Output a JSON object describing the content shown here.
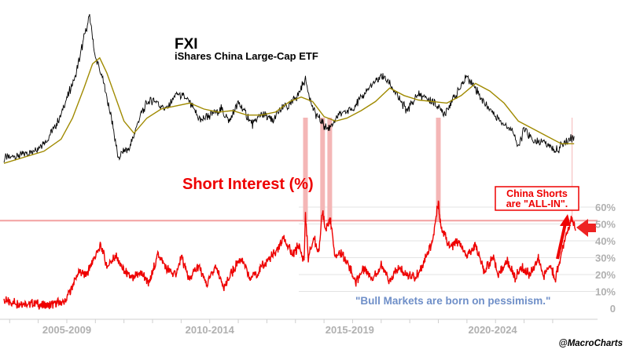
{
  "title": "FXI",
  "subtitle": "iShares China Large-Cap ETF",
  "short_interest_label": "Short Interest (%)",
  "callout": {
    "line1": "China Shorts",
    "line2": "are \"ALL-IN\"."
  },
  "quote": "\"Bull Markets are born on pessimism.\"",
  "credit": "@MacroCharts",
  "colors": {
    "price": "#000000",
    "moving_average": "#a08a00",
    "short_interest": "#ee0000",
    "highlight": "#f4b6b6",
    "threshold": "#f3a0a0",
    "quote": "#6f8fc8",
    "axis_text": "#b0b0b0"
  },
  "chart_data": [
    {
      "type": "line",
      "title": "FXI",
      "subtitle": "iShares China Large-Cap ETF",
      "series": [
        {
          "values": [
            [
              2004.8,
              0.05
            ],
            [
              2005.3,
              0.07
            ],
            [
              2005.8,
              0.1
            ],
            [
              2006.3,
              0.17
            ],
            [
              2006.7,
              0.3
            ],
            [
              2007.0,
              0.45
            ],
            [
              2007.3,
              0.6
            ],
            [
              2007.6,
              0.85
            ],
            [
              2007.8,
              1.0
            ],
            [
              2008.0,
              0.72
            ],
            [
              2008.3,
              0.55
            ],
            [
              2008.6,
              0.28
            ],
            [
              2008.8,
              0.05
            ],
            [
              2009.0,
              0.1
            ],
            [
              2009.2,
              0.12
            ],
            [
              2009.5,
              0.3
            ],
            [
              2009.8,
              0.42
            ],
            [
              2010.0,
              0.44
            ],
            [
              2010.5,
              0.38
            ],
            [
              2010.8,
              0.48
            ],
            [
              2011.2,
              0.45
            ],
            [
              2011.7,
              0.3
            ],
            [
              2011.9,
              0.33
            ],
            [
              2012.4,
              0.38
            ],
            [
              2012.7,
              0.3
            ],
            [
              2013.0,
              0.42
            ],
            [
              2013.5,
              0.28
            ],
            [
              2013.8,
              0.35
            ],
            [
              2014.2,
              0.3
            ],
            [
              2014.6,
              0.4
            ],
            [
              2014.8,
              0.4
            ],
            [
              2015.1,
              0.48
            ],
            [
              2015.35,
              0.58
            ],
            [
              2015.6,
              0.38
            ],
            [
              2016.0,
              0.27
            ],
            [
              2016.15,
              0.25
            ],
            [
              2016.6,
              0.35
            ],
            [
              2017.0,
              0.38
            ],
            [
              2017.5,
              0.5
            ],
            [
              2018.0,
              0.6
            ],
            [
              2018.3,
              0.55
            ],
            [
              2018.6,
              0.45
            ],
            [
              2018.9,
              0.37
            ],
            [
              2019.3,
              0.48
            ],
            [
              2019.8,
              0.43
            ],
            [
              2020.2,
              0.35
            ],
            [
              2020.6,
              0.47
            ],
            [
              2021.0,
              0.6
            ],
            [
              2021.2,
              0.55
            ],
            [
              2021.6,
              0.42
            ],
            [
              2021.9,
              0.36
            ],
            [
              2022.2,
              0.3
            ],
            [
              2022.6,
              0.24
            ],
            [
              2022.8,
              0.12
            ],
            [
              2023.0,
              0.25
            ],
            [
              2023.4,
              0.15
            ],
            [
              2023.7,
              0.17
            ],
            [
              2024.0,
              0.12
            ],
            [
              2024.1,
              0.1
            ],
            [
              2024.5,
              0.17
            ],
            [
              2024.75,
              0.2
            ]
          ]
        },
        {
          "values": [
            [
              2004.8,
              0.02
            ],
            [
              2005.5,
              0.06
            ],
            [
              2006.2,
              0.1
            ],
            [
              2006.8,
              0.18
            ],
            [
              2007.2,
              0.32
            ],
            [
              2007.6,
              0.52
            ],
            [
              2007.9,
              0.68
            ],
            [
              2008.15,
              0.72
            ],
            [
              2008.4,
              0.62
            ],
            [
              2008.7,
              0.46
            ],
            [
              2009.0,
              0.3
            ],
            [
              2009.35,
              0.22
            ],
            [
              2009.8,
              0.32
            ],
            [
              2010.3,
              0.38
            ],
            [
              2010.8,
              0.4
            ],
            [
              2011.3,
              0.42
            ],
            [
              2011.8,
              0.38
            ],
            [
              2012.3,
              0.36
            ],
            [
              2012.8,
              0.37
            ],
            [
              2013.3,
              0.34
            ],
            [
              2013.8,
              0.34
            ],
            [
              2014.3,
              0.36
            ],
            [
              2014.8,
              0.43
            ],
            [
              2015.2,
              0.46
            ],
            [
              2015.6,
              0.43
            ],
            [
              2016.0,
              0.33
            ],
            [
              2016.4,
              0.3
            ],
            [
              2016.8,
              0.32
            ],
            [
              2017.3,
              0.37
            ],
            [
              2017.8,
              0.43
            ],
            [
              2018.3,
              0.52
            ],
            [
              2018.8,
              0.47
            ],
            [
              2019.3,
              0.44
            ],
            [
              2019.8,
              0.43
            ],
            [
              2020.3,
              0.42
            ],
            [
              2020.8,
              0.47
            ],
            [
              2021.3,
              0.55
            ],
            [
              2021.8,
              0.5
            ],
            [
              2022.3,
              0.42
            ],
            [
              2022.8,
              0.3
            ],
            [
              2023.3,
              0.25
            ],
            [
              2023.8,
              0.2
            ],
            [
              2024.3,
              0.15
            ],
            [
              2024.75,
              0.15
            ]
          ]
        }
      ]
    },
    {
      "type": "line",
      "title": "Short Interest (%)",
      "ylim": [
        0,
        60
      ],
      "yticks": [
        "0",
        "10%",
        "20%",
        "30%",
        "40%",
        "50%",
        "60%"
      ],
      "xticks": [
        "2005-2009",
        "2010-2014",
        "2015-2019",
        "2020-2024"
      ],
      "threshold": 52,
      "highlight_dates": [
        2015.35,
        2015.95,
        2016.2,
        2020.0,
        2024.68
      ],
      "series": [
        {
          "values": [
            [
              2004.8,
              4
            ],
            [
              2005.3,
              3
            ],
            [
              2005.8,
              3
            ],
            [
              2006.3,
              1.5
            ],
            [
              2006.8,
              3
            ],
            [
              2006.95,
              4
            ],
            [
              2007.1,
              10
            ],
            [
              2007.4,
              21
            ],
            [
              2007.7,
              20
            ],
            [
              2007.95,
              30
            ],
            [
              2008.2,
              37
            ],
            [
              2008.4,
              25
            ],
            [
              2008.7,
              31
            ],
            [
              2009.0,
              22
            ],
            [
              2009.3,
              17
            ],
            [
              2009.6,
              21
            ],
            [
              2009.9,
              15
            ],
            [
              2010.2,
              33
            ],
            [
              2010.5,
              23
            ],
            [
              2010.8,
              20
            ],
            [
              2011.0,
              30
            ],
            [
              2011.3,
              17
            ],
            [
              2011.6,
              25
            ],
            [
              2011.9,
              14
            ],
            [
              2012.2,
              25
            ],
            [
              2012.5,
              12
            ],
            [
              2012.8,
              22
            ],
            [
              2013.1,
              30
            ],
            [
              2013.4,
              18
            ],
            [
              2013.7,
              22
            ],
            [
              2014.0,
              28
            ],
            [
              2014.3,
              33
            ],
            [
              2014.6,
              42
            ],
            [
              2014.9,
              31
            ],
            [
              2015.1,
              37
            ],
            [
              2015.3,
              28
            ],
            [
              2015.35,
              56
            ],
            [
              2015.45,
              30
            ],
            [
              2015.65,
              42
            ],
            [
              2015.8,
              32
            ],
            [
              2015.95,
              58
            ],
            [
              2016.05,
              47
            ],
            [
              2016.2,
              54
            ],
            [
              2016.4,
              30
            ],
            [
              2016.6,
              33
            ],
            [
              2016.9,
              25
            ],
            [
              2017.1,
              15
            ],
            [
              2017.4,
              24
            ],
            [
              2017.7,
              18
            ],
            [
              2018.0,
              25
            ],
            [
              2018.3,
              16
            ],
            [
              2018.6,
              24
            ],
            [
              2018.9,
              20
            ],
            [
              2019.2,
              18
            ],
            [
              2019.5,
              28
            ],
            [
              2019.8,
              40
            ],
            [
              2020.0,
              63
            ],
            [
              2020.1,
              48
            ],
            [
              2020.4,
              36
            ],
            [
              2020.7,
              40
            ],
            [
              2021.0,
              30
            ],
            [
              2021.3,
              38
            ],
            [
              2021.6,
              22
            ],
            [
              2021.9,
              30
            ],
            [
              2022.1,
              20
            ],
            [
              2022.4,
              28
            ],
            [
              2022.7,
              18
            ],
            [
              2022.9,
              24
            ],
            [
              2023.2,
              20
            ],
            [
              2023.5,
              29
            ],
            [
              2023.7,
              20
            ],
            [
              2023.9,
              25
            ],
            [
              2024.1,
              18
            ],
            [
              2024.3,
              32
            ],
            [
              2024.5,
              45
            ],
            [
              2024.68,
              53
            ],
            [
              2024.8,
              46
            ]
          ]
        }
      ]
    }
  ]
}
